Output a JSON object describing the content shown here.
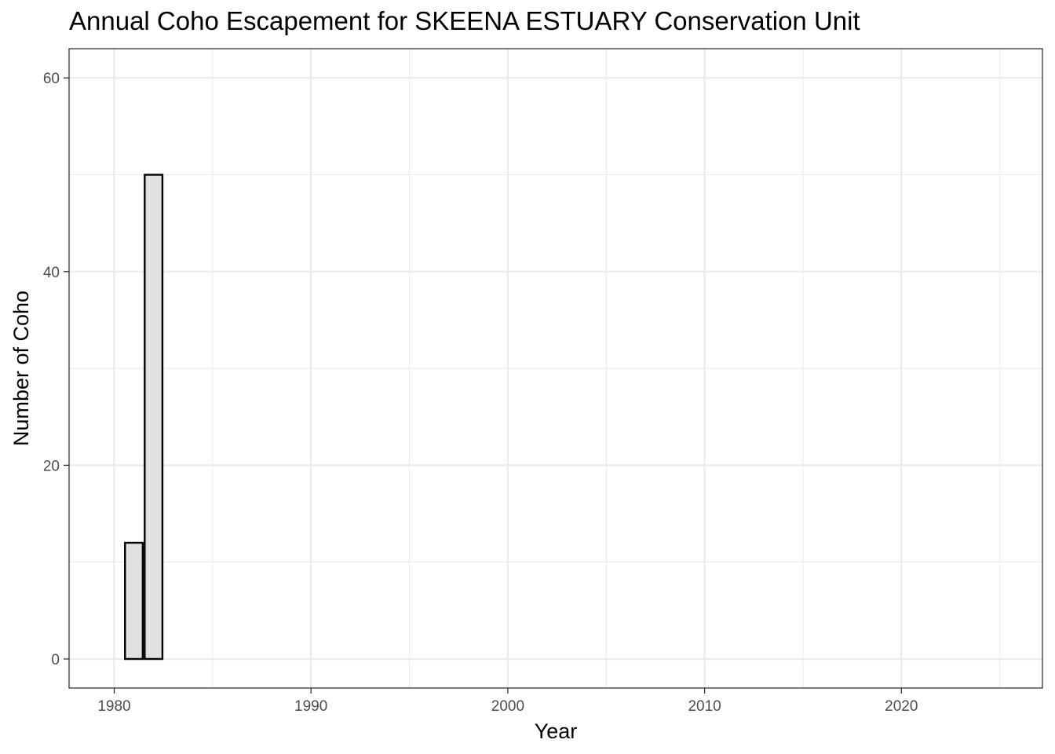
{
  "chart_data": {
    "type": "bar",
    "title": "Annual Coho Escapement for SKEENA ESTUARY Conservation Unit",
    "xlabel": "Year",
    "ylabel": "Number of Coho",
    "x": [
      1981,
      1982
    ],
    "values": [
      12,
      50
    ],
    "xlim": [
      1977.7,
      1927.4
    ],
    "ylim": [
      -3,
      63
    ],
    "x_ticks": [
      1980,
      1990,
      2000,
      2010,
      2020
    ],
    "x_minor_ticks": [
      1985,
      1995,
      2005,
      2015,
      2025
    ],
    "y_ticks": [
      0,
      20,
      40,
      60
    ],
    "y_minor_ticks": [
      10,
      30,
      50
    ],
    "bar_fill": "#e0e0e0",
    "bar_stroke": "#000000",
    "grid": true,
    "grid_color": "#ebebeb"
  }
}
